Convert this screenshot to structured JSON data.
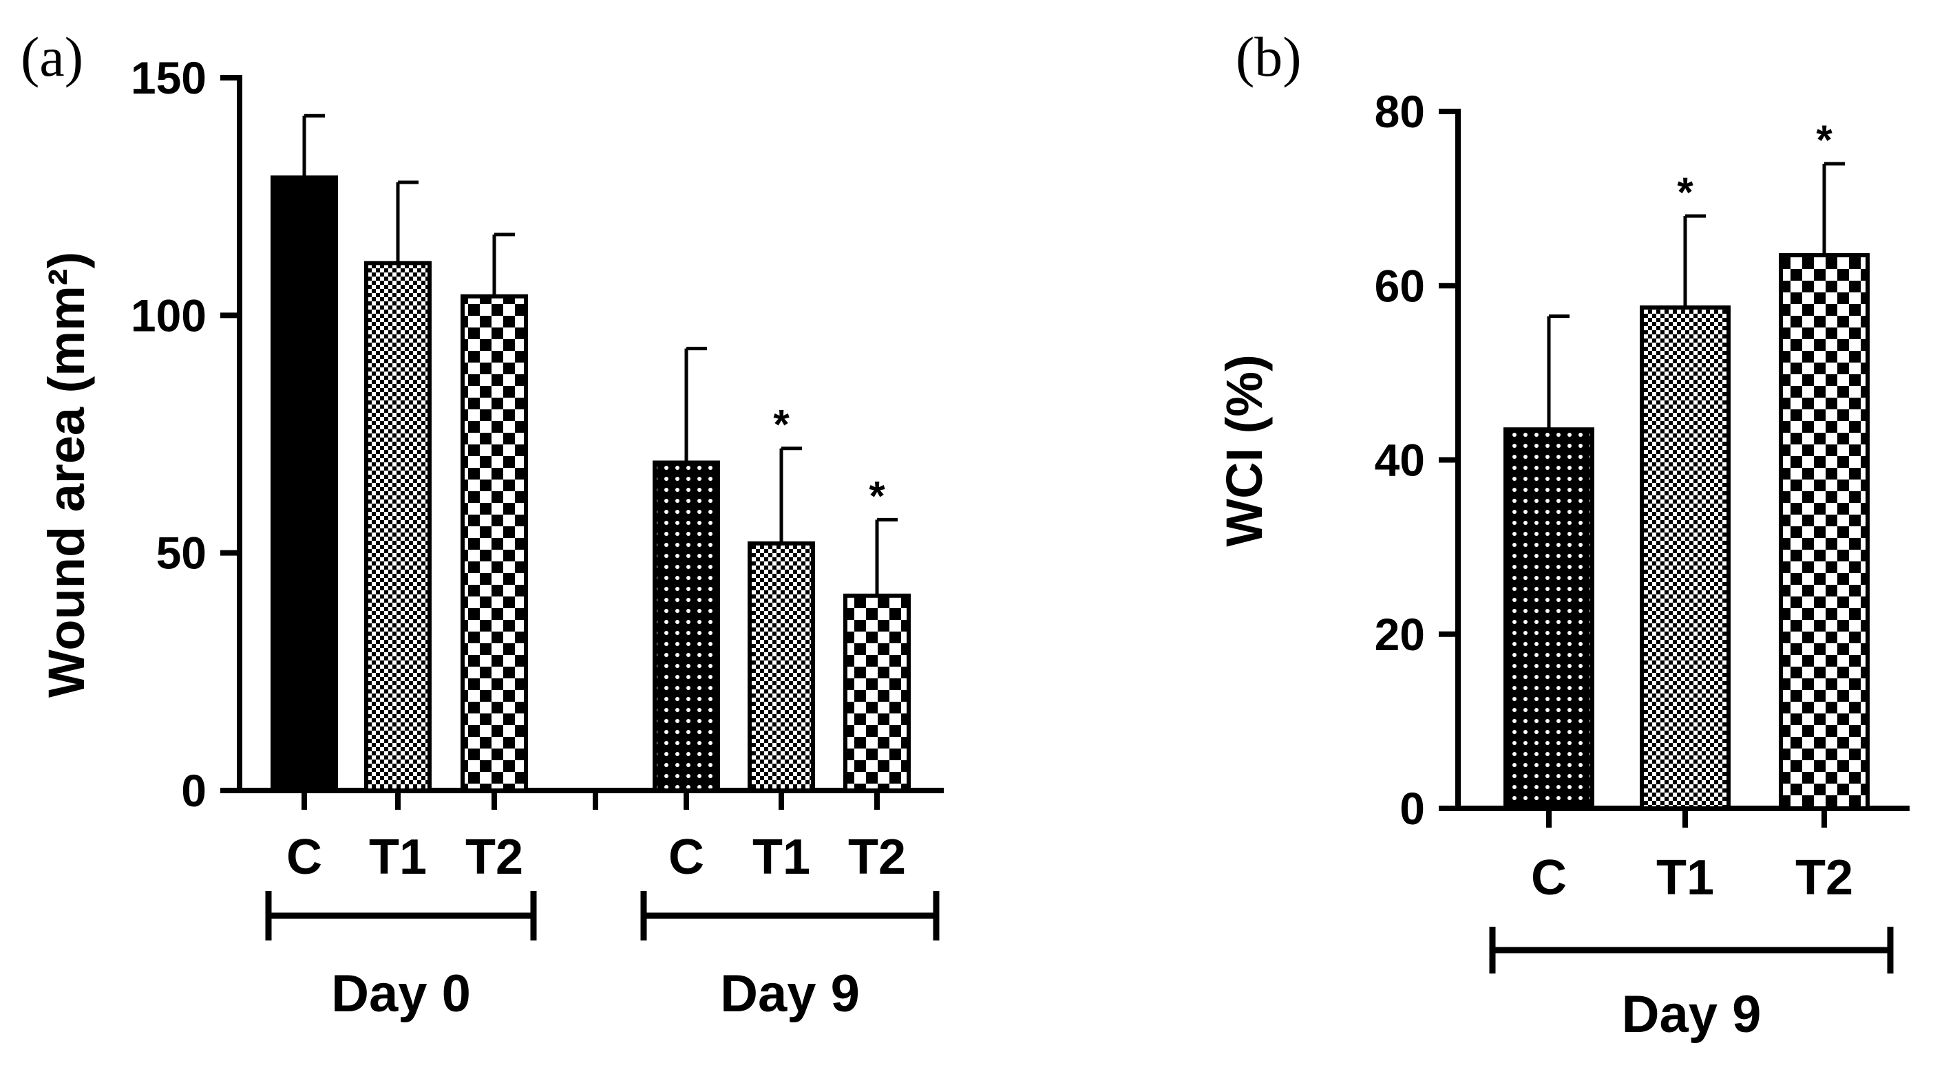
{
  "colors": {
    "ink": "#000000",
    "background": "#ffffff"
  },
  "chart_data": [
    {
      "panel": "(a)",
      "type": "bar",
      "title": "",
      "ylabel": "Wound area (mm²)",
      "ylim": [
        0,
        150
      ],
      "yticks": [
        0,
        50,
        100,
        150
      ],
      "groups": [
        {
          "label": "Day 0",
          "bars": [
            {
              "category": "C",
              "value": 129,
              "error": 13,
              "pattern": "solid",
              "sig": ""
            },
            {
              "category": "T1",
              "value": 111,
              "error": 17,
              "pattern": "fine",
              "sig": ""
            },
            {
              "category": "T2",
              "value": 104,
              "error": 13,
              "pattern": "checker",
              "sig": ""
            }
          ]
        },
        {
          "label": "Day 9",
          "bars": [
            {
              "category": "C",
              "value": 69,
              "error": 24,
              "pattern": "dots",
              "sig": ""
            },
            {
              "category": "T1",
              "value": 52,
              "error": 20,
              "pattern": "fine",
              "sig": "*"
            },
            {
              "category": "T2",
              "value": 41,
              "error": 16,
              "pattern": "checker",
              "sig": "*"
            }
          ]
        }
      ]
    },
    {
      "panel": "(b)",
      "type": "bar",
      "title": "",
      "ylabel": "WCI (%)",
      "ylim": [
        0,
        80
      ],
      "yticks": [
        0,
        20,
        40,
        60,
        80
      ],
      "groups": [
        {
          "label": "Day 9",
          "bars": [
            {
              "category": "C",
              "value": 43.5,
              "error": 13,
              "pattern": "dots",
              "sig": ""
            },
            {
              "category": "T1",
              "value": 57.5,
              "error": 10.5,
              "pattern": "fine",
              "sig": "*"
            },
            {
              "category": "T2",
              "value": 63.5,
              "error": 10.5,
              "pattern": "checker",
              "sig": "*"
            }
          ]
        }
      ]
    }
  ]
}
